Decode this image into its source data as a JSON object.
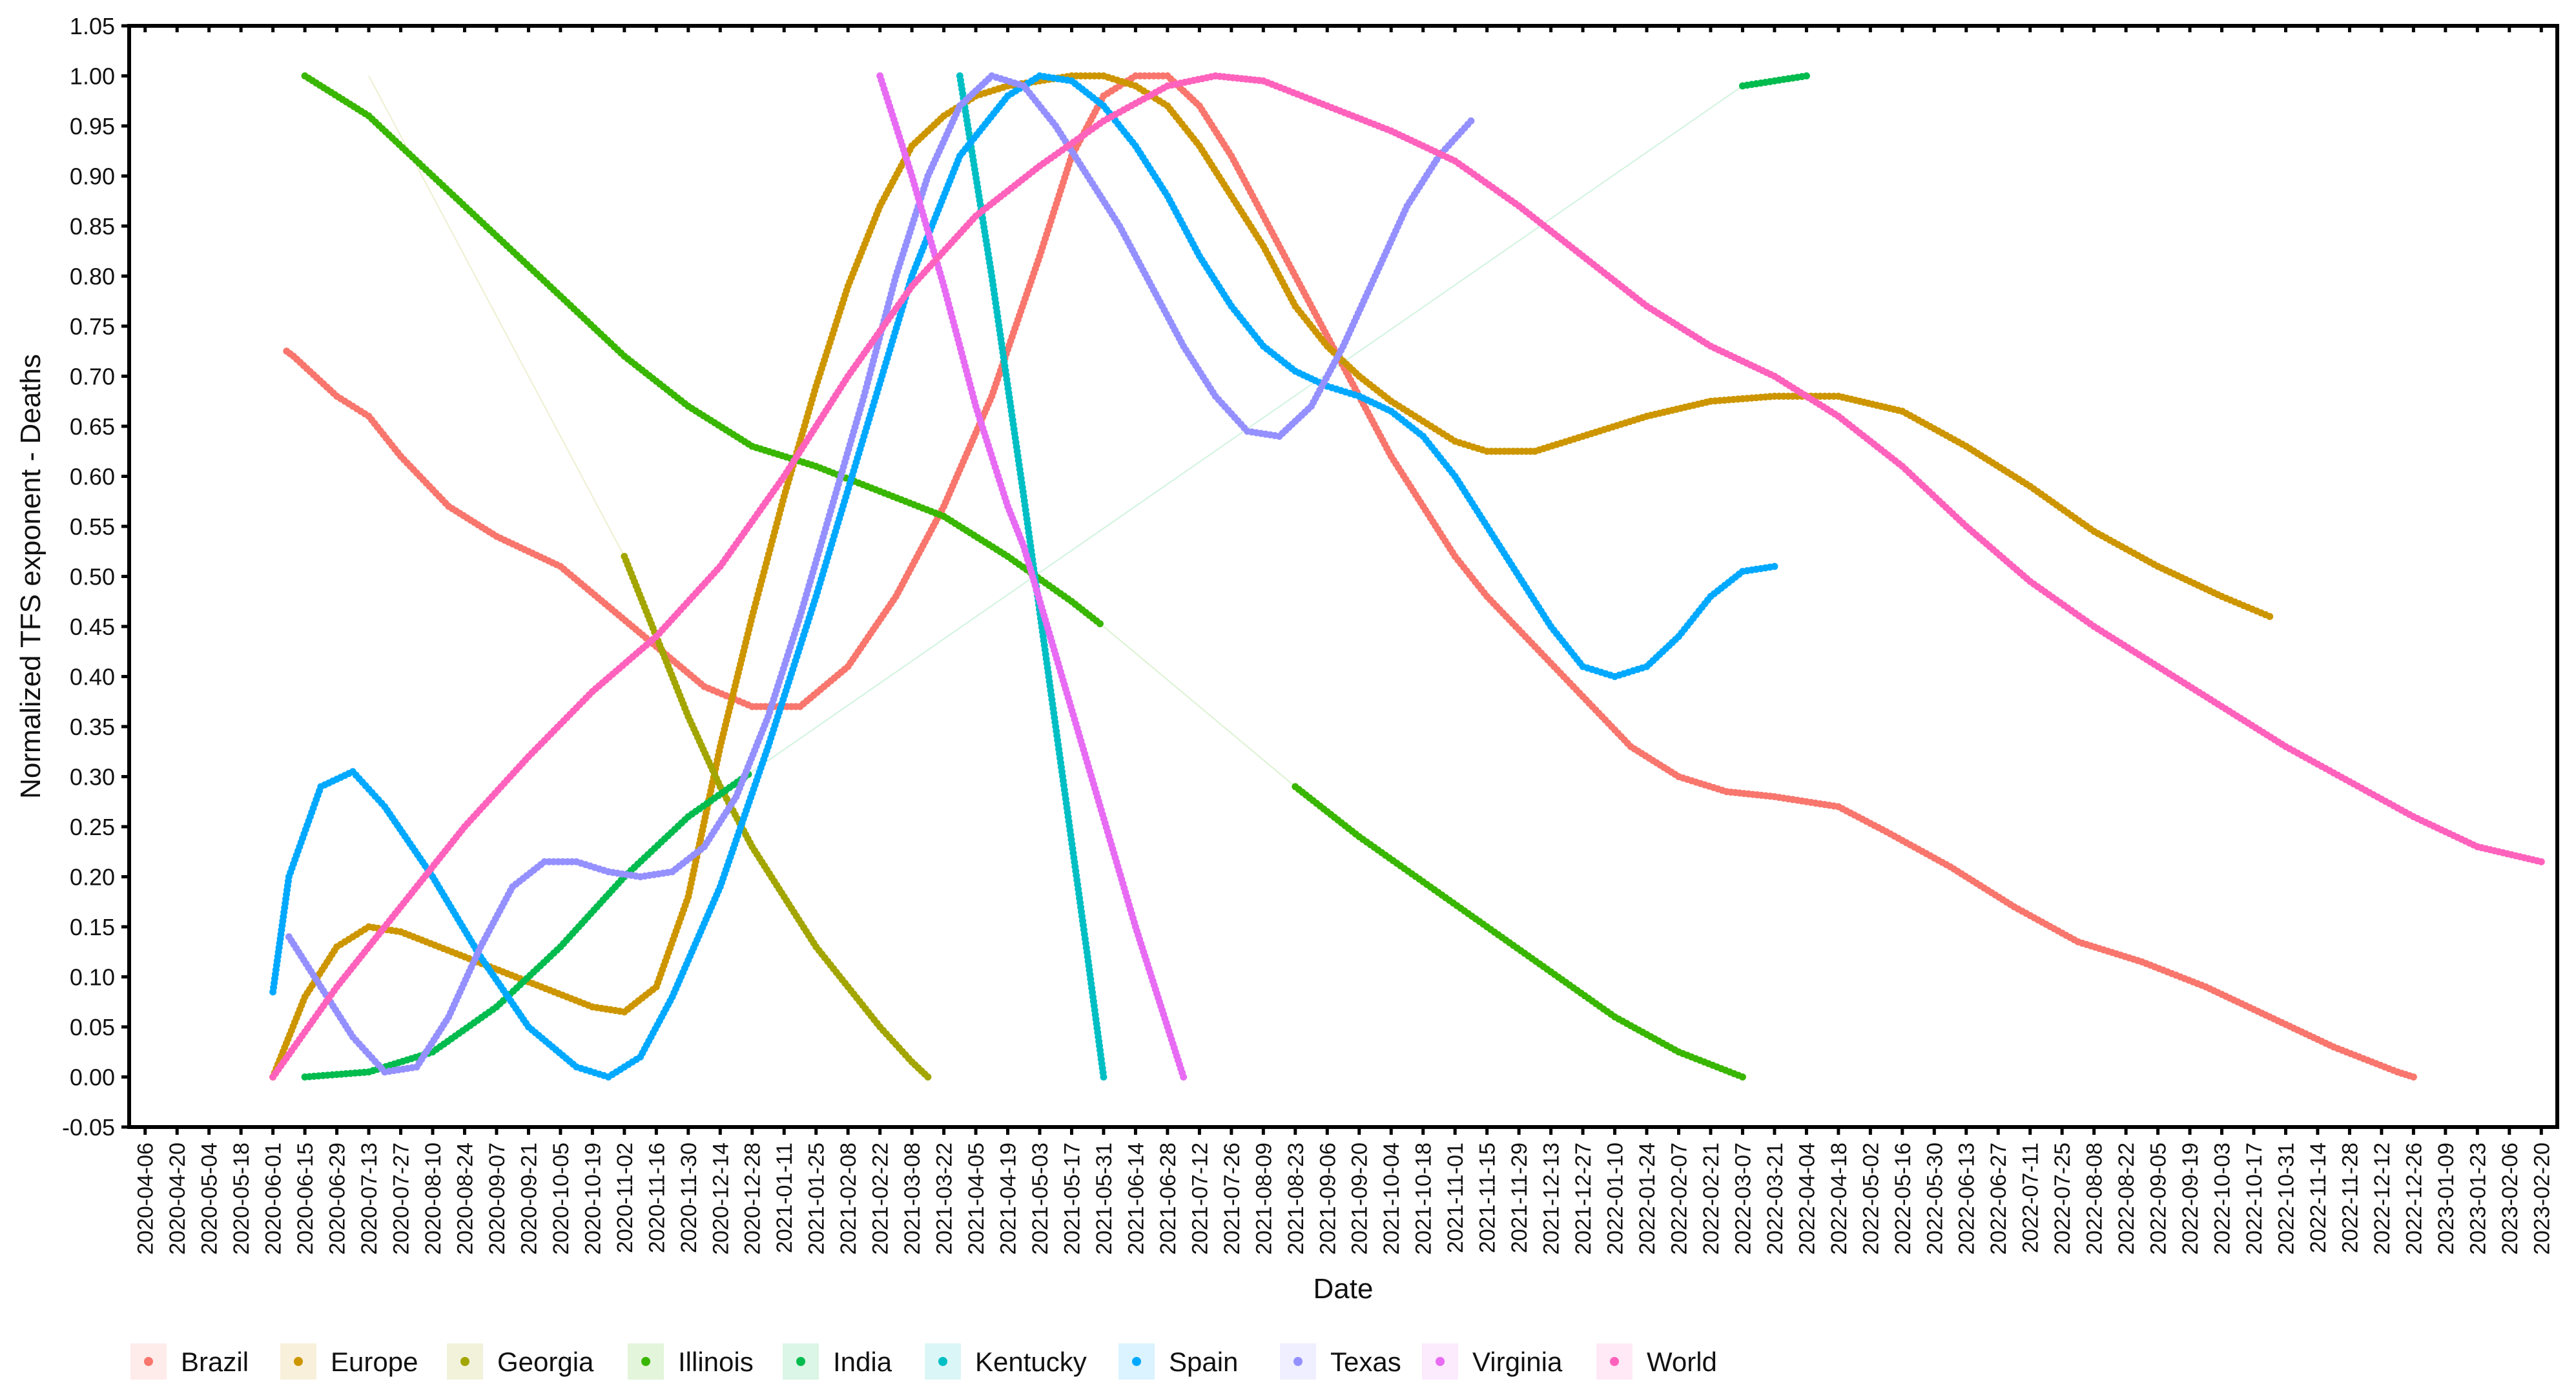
{
  "chart_data": {
    "type": "line",
    "title": "",
    "xlabel": "Date",
    "ylabel": "Normalized TFS exponent - Deaths",
    "xlim": [
      "2020-03-30",
      "2023-02-27"
    ],
    "ylim": [
      -0.05,
      1.05
    ],
    "y_ticks": [
      "-0.05",
      "0.00",
      "0.05",
      "0.10",
      "0.15",
      "0.20",
      "0.25",
      "0.30",
      "0.35",
      "0.40",
      "0.45",
      "0.50",
      "0.55",
      "0.60",
      "0.65",
      "0.70",
      "0.75",
      "0.80",
      "0.85",
      "0.90",
      "0.95",
      "1.00",
      "1.05"
    ],
    "x_ticks": [
      "2020-04-06",
      "2020-04-20",
      "2020-05-04",
      "2020-05-18",
      "2020-06-01",
      "2020-06-15",
      "2020-06-29",
      "2020-07-13",
      "2020-07-27",
      "2020-08-10",
      "2020-08-24",
      "2020-09-07",
      "2020-09-21",
      "2020-10-05",
      "2020-10-19",
      "2020-11-02",
      "2020-11-16",
      "2020-11-30",
      "2020-12-14",
      "2020-12-28",
      "2021-01-11",
      "2021-01-25",
      "2021-02-08",
      "2021-02-22",
      "2021-03-08",
      "2021-03-22",
      "2021-04-05",
      "2021-04-19",
      "2021-05-03",
      "2021-05-17",
      "2021-05-31",
      "2021-06-14",
      "2021-06-28",
      "2021-07-12",
      "2021-07-26",
      "2021-08-09",
      "2021-08-23",
      "2021-09-06",
      "2021-09-20",
      "2021-10-04",
      "2021-10-18",
      "2021-11-01",
      "2021-11-15",
      "2021-11-29",
      "2021-12-13",
      "2021-12-27",
      "2022-01-10",
      "2022-01-24",
      "2022-02-07",
      "2022-02-21",
      "2022-03-07",
      "2022-03-21",
      "2022-04-04",
      "2022-04-18",
      "2022-05-02",
      "2022-05-16",
      "2022-05-30",
      "2022-06-13",
      "2022-06-27",
      "2022-07-11",
      "2022-07-25",
      "2022-08-08",
      "2022-08-22",
      "2022-09-05",
      "2022-09-19",
      "2022-10-03",
      "2022-10-17",
      "2022-10-31",
      "2022-11-14",
      "2022-11-28",
      "2022-12-12",
      "2022-12-26",
      "2023-01-09",
      "2023-01-23",
      "2023-02-06",
      "2023-02-20"
    ],
    "grid": false,
    "legend_position": "bottom",
    "series": [
      {
        "name": "Brazil",
        "color": "#F8766D",
        "x": [
          "2020-06-07",
          "2020-06-10",
          "2020-06-29",
          "2020-07-13",
          "2020-07-27",
          "2020-08-17",
          "2020-09-07",
          "2020-10-05",
          "2020-10-26",
          "2020-11-16",
          "2020-12-07",
          "2020-12-28",
          "2021-01-18",
          "2021-02-08",
          "2021-03-01",
          "2021-03-22",
          "2021-04-12",
          "2021-05-03",
          "2021-05-17",
          "2021-05-31",
          "2021-06-14",
          "2021-06-28",
          "2021-07-12",
          "2021-07-26",
          "2021-08-09",
          "2021-08-23",
          "2021-09-06",
          "2021-09-20",
          "2021-10-04",
          "2021-10-18",
          "2021-11-01",
          "2021-11-15",
          "2021-12-06",
          "2021-12-27",
          "2022-01-17",
          "2022-02-07",
          "2022-02-28",
          "2022-03-21",
          "2022-04-18",
          "2022-05-09",
          "2022-06-06",
          "2022-07-04",
          "2022-08-01",
          "2022-08-29",
          "2022-09-26",
          "2022-10-24",
          "2022-11-21",
          "2022-12-19",
          "2022-12-26"
        ],
        "y": [
          0.725,
          0.72,
          0.68,
          0.66,
          0.62,
          0.57,
          0.54,
          0.51,
          0.47,
          0.43,
          0.39,
          0.37,
          0.37,
          0.41,
          0.48,
          0.57,
          0.68,
          0.82,
          0.92,
          0.98,
          1.0,
          1.0,
          0.97,
          0.92,
          0.86,
          0.8,
          0.74,
          0.68,
          0.62,
          0.57,
          0.52,
          0.48,
          0.43,
          0.38,
          0.33,
          0.3,
          0.285,
          0.28,
          0.27,
          0.245,
          0.21,
          0.17,
          0.135,
          0.115,
          0.09,
          0.06,
          0.03,
          0.005,
          0.0
        ]
      },
      {
        "name": "Europe",
        "color": "#CD9600",
        "x": [
          "2020-06-01",
          "2020-06-15",
          "2020-06-29",
          "2020-07-13",
          "2020-07-27",
          "2020-08-24",
          "2020-09-21",
          "2020-10-19",
          "2020-11-02",
          "2020-11-16",
          "2020-11-30",
          "2020-12-14",
          "2020-12-28",
          "2021-01-11",
          "2021-01-25",
          "2021-02-08",
          "2021-02-22",
          "2021-03-08",
          "2021-03-22",
          "2021-04-05",
          "2021-04-19",
          "2021-05-03",
          "2021-05-17",
          "2021-05-31",
          "2021-06-14",
          "2021-06-28",
          "2021-07-12",
          "2021-07-26",
          "2021-08-09",
          "2021-08-23",
          "2021-09-06",
          "2021-09-20",
          "2021-10-04",
          "2021-10-18",
          "2021-11-01",
          "2021-11-15",
          "2021-12-06",
          "2021-12-27",
          "2022-01-24",
          "2022-02-21",
          "2022-03-21",
          "2022-04-18",
          "2022-05-16",
          "2022-06-13",
          "2022-07-11",
          "2022-08-08",
          "2022-09-05",
          "2022-10-03",
          "2022-10-24"
        ],
        "y": [
          0.0,
          0.08,
          0.13,
          0.15,
          0.145,
          0.12,
          0.095,
          0.07,
          0.065,
          0.09,
          0.18,
          0.33,
          0.46,
          0.58,
          0.69,
          0.79,
          0.87,
          0.93,
          0.96,
          0.98,
          0.99,
          0.995,
          1.0,
          1.0,
          0.99,
          0.97,
          0.93,
          0.88,
          0.83,
          0.77,
          0.73,
          0.7,
          0.675,
          0.655,
          0.635,
          0.625,
          0.625,
          0.64,
          0.66,
          0.675,
          0.68,
          0.68,
          0.665,
          0.63,
          0.59,
          0.545,
          0.51,
          0.48,
          0.46
        ]
      },
      {
        "name": "Georgia",
        "color": "#A3A500",
        "x": [
          "2020-07-13",
          "2020-11-02",
          "2020-11-16",
          "2020-11-30",
          "2020-12-14",
          "2020-12-28",
          "2021-01-11",
          "2021-01-25",
          "2021-02-08",
          "2021-02-22",
          "2021-03-08",
          "2021-03-15"
        ],
        "y": [
          1.0,
          0.52,
          0.44,
          0.36,
          0.29,
          0.23,
          0.18,
          0.13,
          0.09,
          0.05,
          0.015,
          0.0
        ]
      },
      {
        "name": "Illinois",
        "color": "#39B600",
        "x": [
          "2020-06-15",
          "2020-07-13",
          "2020-08-10",
          "2020-09-07",
          "2020-10-05",
          "2020-11-02",
          "2020-11-30",
          "2020-12-28",
          "2021-01-25",
          "2021-02-22",
          "2021-03-22",
          "2021-04-19",
          "2021-05-17",
          "2021-05-31",
          "2021-08-23",
          "2021-09-20",
          "2021-10-18",
          "2021-11-15",
          "2021-12-13",
          "2022-01-10",
          "2022-02-07",
          "2022-03-07"
        ],
        "y": [
          1.0,
          0.96,
          0.9,
          0.84,
          0.78,
          0.72,
          0.67,
          0.63,
          0.61,
          0.585,
          0.56,
          0.52,
          0.475,
          0.45,
          0.29,
          0.24,
          0.195,
          0.15,
          0.105,
          0.06,
          0.025,
          0.0
        ]
      },
      {
        "name": "India",
        "color": "#00BB4E",
        "x": [
          "2020-06-15",
          "2020-07-13",
          "2020-08-10",
          "2020-09-07",
          "2020-10-05",
          "2020-11-02",
          "2020-11-30",
          "2020-12-28",
          "2022-03-07",
          "2022-03-21",
          "2022-04-04"
        ],
        "y": [
          0.0,
          0.005,
          0.025,
          0.07,
          0.13,
          0.2,
          0.26,
          0.305,
          0.99,
          0.995,
          1.0
        ]
      },
      {
        "name": "Kentucky",
        "color": "#00BFC4",
        "x": [
          "2021-03-29",
          "2021-04-12",
          "2021-04-26",
          "2021-05-10",
          "2021-05-24",
          "2021-05-31"
        ],
        "y": [
          1.0,
          0.8,
          0.58,
          0.35,
          0.12,
          0.0
        ]
      },
      {
        "name": "Spain",
        "color": "#00A9FF",
        "x": [
          "2020-06-01",
          "2020-06-08",
          "2020-06-22",
          "2020-07-06",
          "2020-07-20",
          "2020-08-10",
          "2020-08-31",
          "2020-09-21",
          "2020-10-12",
          "2020-10-26",
          "2020-11-09",
          "2020-11-23",
          "2020-12-14",
          "2021-01-04",
          "2021-01-25",
          "2021-02-15",
          "2021-03-08",
          "2021-03-29",
          "2021-04-19",
          "2021-05-03",
          "2021-05-17",
          "2021-05-31",
          "2021-06-14",
          "2021-06-28",
          "2021-07-12",
          "2021-07-26",
          "2021-08-09",
          "2021-08-23",
          "2021-09-06",
          "2021-09-20",
          "2021-10-04",
          "2021-10-18",
          "2021-11-01",
          "2021-11-15",
          "2021-11-29",
          "2021-12-13",
          "2021-12-27",
          "2022-01-10",
          "2022-01-24",
          "2022-02-07",
          "2022-02-21",
          "2022-03-07",
          "2022-03-21"
        ],
        "y": [
          0.085,
          0.2,
          0.29,
          0.305,
          0.27,
          0.2,
          0.12,
          0.05,
          0.01,
          0.0,
          0.02,
          0.08,
          0.19,
          0.33,
          0.48,
          0.64,
          0.8,
          0.92,
          0.98,
          1.0,
          0.995,
          0.97,
          0.93,
          0.88,
          0.82,
          0.77,
          0.73,
          0.705,
          0.69,
          0.68,
          0.665,
          0.64,
          0.6,
          0.55,
          0.5,
          0.45,
          0.41,
          0.4,
          0.41,
          0.44,
          0.48,
          0.505,
          0.51
        ]
      },
      {
        "name": "Texas",
        "color": "#9590FF",
        "x": [
          "2020-06-08",
          "2020-06-22",
          "2020-07-06",
          "2020-07-20",
          "2020-08-03",
          "2020-08-17",
          "2020-08-31",
          "2020-09-14",
          "2020-09-28",
          "2020-10-12",
          "2020-10-26",
          "2020-11-09",
          "2020-11-23",
          "2020-12-07",
          "2020-12-21",
          "2021-01-04",
          "2021-01-18",
          "2021-02-01",
          "2021-02-15",
          "2021-03-01",
          "2021-03-15",
          "2021-03-29",
          "2021-04-12",
          "2021-04-26",
          "2021-05-10",
          "2021-05-24",
          "2021-06-07",
          "2021-06-21",
          "2021-07-05",
          "2021-07-19",
          "2021-08-02",
          "2021-08-16",
          "2021-08-30",
          "2021-09-13",
          "2021-09-27",
          "2021-10-11",
          "2021-10-25",
          "2021-11-08"
        ],
        "y": [
          0.14,
          0.09,
          0.04,
          0.005,
          0.01,
          0.06,
          0.13,
          0.19,
          0.215,
          0.215,
          0.205,
          0.2,
          0.205,
          0.23,
          0.28,
          0.36,
          0.46,
          0.57,
          0.68,
          0.8,
          0.9,
          0.97,
          1.0,
          0.99,
          0.95,
          0.9,
          0.85,
          0.79,
          0.73,
          0.68,
          0.645,
          0.64,
          0.67,
          0.73,
          0.8,
          0.87,
          0.92,
          0.955
        ]
      },
      {
        "name": "Virginia",
        "color": "#E76BF3",
        "x": [
          "2021-02-22",
          "2021-03-08",
          "2021-03-22",
          "2021-04-05",
          "2021-04-19",
          "2021-04-26",
          "2021-06-14",
          "2021-06-21",
          "2021-06-28",
          "2021-07-05"
        ],
        "y": [
          1.0,
          0.9,
          0.79,
          0.67,
          0.57,
          0.53,
          0.15,
          0.1,
          0.05,
          0.0
        ]
      },
      {
        "name": "World",
        "color": "#FF62BC",
        "x": [
          "2020-06-01",
          "2020-06-29",
          "2020-07-27",
          "2020-08-24",
          "2020-09-21",
          "2020-10-19",
          "2020-11-16",
          "2020-12-14",
          "2021-01-11",
          "2021-02-08",
          "2021-03-08",
          "2021-04-05",
          "2021-05-03",
          "2021-05-31",
          "2021-06-28",
          "2021-07-19",
          "2021-08-09",
          "2021-09-06",
          "2021-10-04",
          "2021-11-01",
          "2021-11-29",
          "2021-12-27",
          "2022-01-24",
          "2022-02-21",
          "2022-03-21",
          "2022-04-18",
          "2022-05-16",
          "2022-06-13",
          "2022-07-11",
          "2022-08-08",
          "2022-09-05",
          "2022-10-03",
          "2022-10-31",
          "2022-11-28",
          "2022-12-26",
          "2023-01-23",
          "2023-02-20"
        ],
        "y": [
          0.0,
          0.09,
          0.17,
          0.25,
          0.32,
          0.385,
          0.44,
          0.51,
          0.6,
          0.7,
          0.79,
          0.86,
          0.91,
          0.955,
          0.99,
          1.0,
          0.995,
          0.97,
          0.945,
          0.915,
          0.87,
          0.82,
          0.77,
          0.73,
          0.7,
          0.66,
          0.61,
          0.55,
          0.495,
          0.45,
          0.41,
          0.37,
          0.33,
          0.295,
          0.26,
          0.23,
          0.215
        ]
      }
    ]
  },
  "legend": {
    "items": [
      {
        "label": "Brazil",
        "color": "#F8766D"
      },
      {
        "label": "Europe",
        "color": "#CD9600"
      },
      {
        "label": "Georgia",
        "color": "#A3A500"
      },
      {
        "label": "Illinois",
        "color": "#39B600"
      },
      {
        "label": "India",
        "color": "#00BB4E"
      },
      {
        "label": "Kentucky",
        "color": "#00BFC4"
      },
      {
        "label": "Spain",
        "color": "#00A9FF"
      },
      {
        "label": "Texas",
        "color": "#9590FF"
      },
      {
        "label": "Virginia",
        "color": "#E76BF3"
      },
      {
        "label": "World",
        "color": "#FF62BC"
      }
    ]
  }
}
